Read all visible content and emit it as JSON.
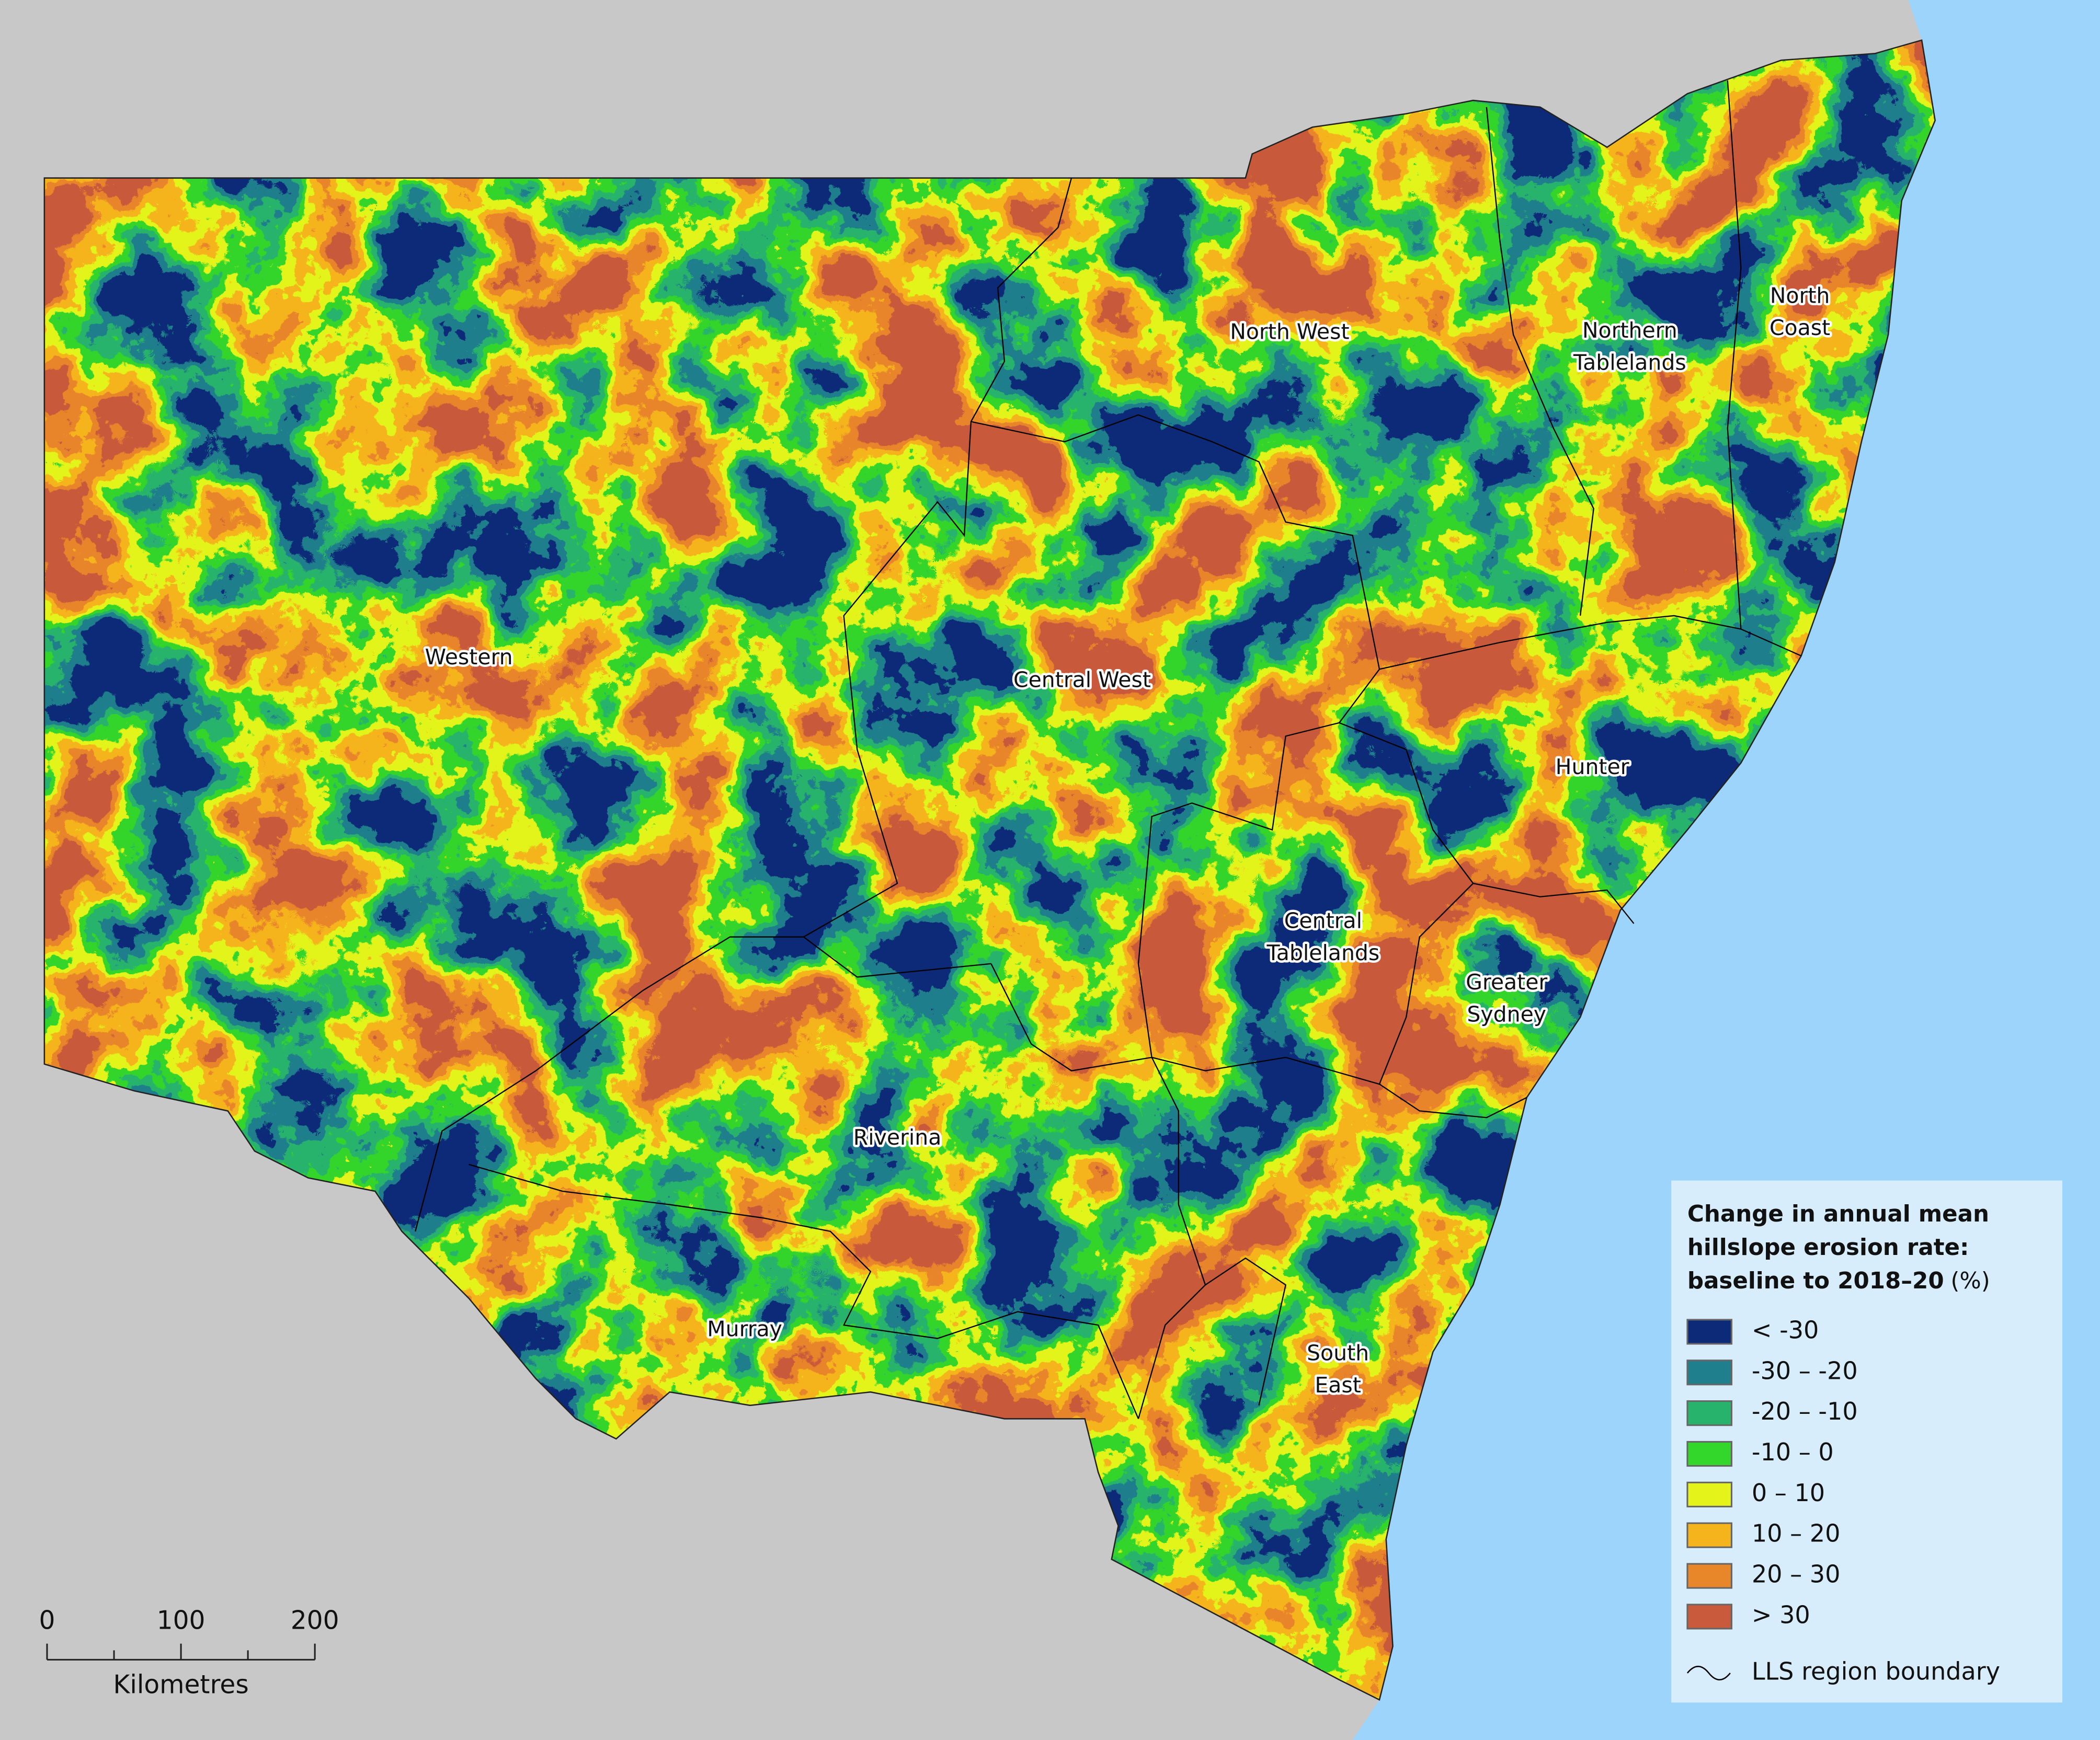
{
  "map": {
    "regions": [
      [
        "Western"
      ],
      [
        "North West"
      ],
      [
        "Northern",
        "Tablelands"
      ],
      [
        "North",
        "Coast"
      ],
      [
        "Central West"
      ],
      [
        "Hunter"
      ],
      [
        "Central",
        "Tablelands"
      ],
      [
        "Greater",
        "Sydney"
      ],
      [
        "Riverina"
      ],
      [
        "Murray"
      ],
      [
        "South",
        "East"
      ]
    ],
    "legend": {
      "title_lines": [
        "Change in annual mean",
        "hillslope erosion rate:",
        "baseline to 2018–20"
      ],
      "unit": "(%)",
      "classes": [
        {
          "label": "< -30",
          "color": "#0d2a78"
        },
        {
          "label": "-30 – -20",
          "color": "#1f7f8c"
        },
        {
          "label": "-20 – -10",
          "color": "#27b36b"
        },
        {
          "label": "-10 – 0",
          "color": "#33d62a"
        },
        {
          "label": "0 – 10",
          "color": "#e4f41a"
        },
        {
          "label": "10 – 20",
          "color": "#f5b31c"
        },
        {
          "label": "20 – 30",
          "color": "#e8862a"
        },
        {
          "label": "> 30",
          "color": "#c95a3c"
        }
      ],
      "boundary_label": "LLS region boundary"
    },
    "scale_bar": {
      "ticks": [
        0,
        100,
        200
      ],
      "unit": "Kilometres"
    }
  }
}
